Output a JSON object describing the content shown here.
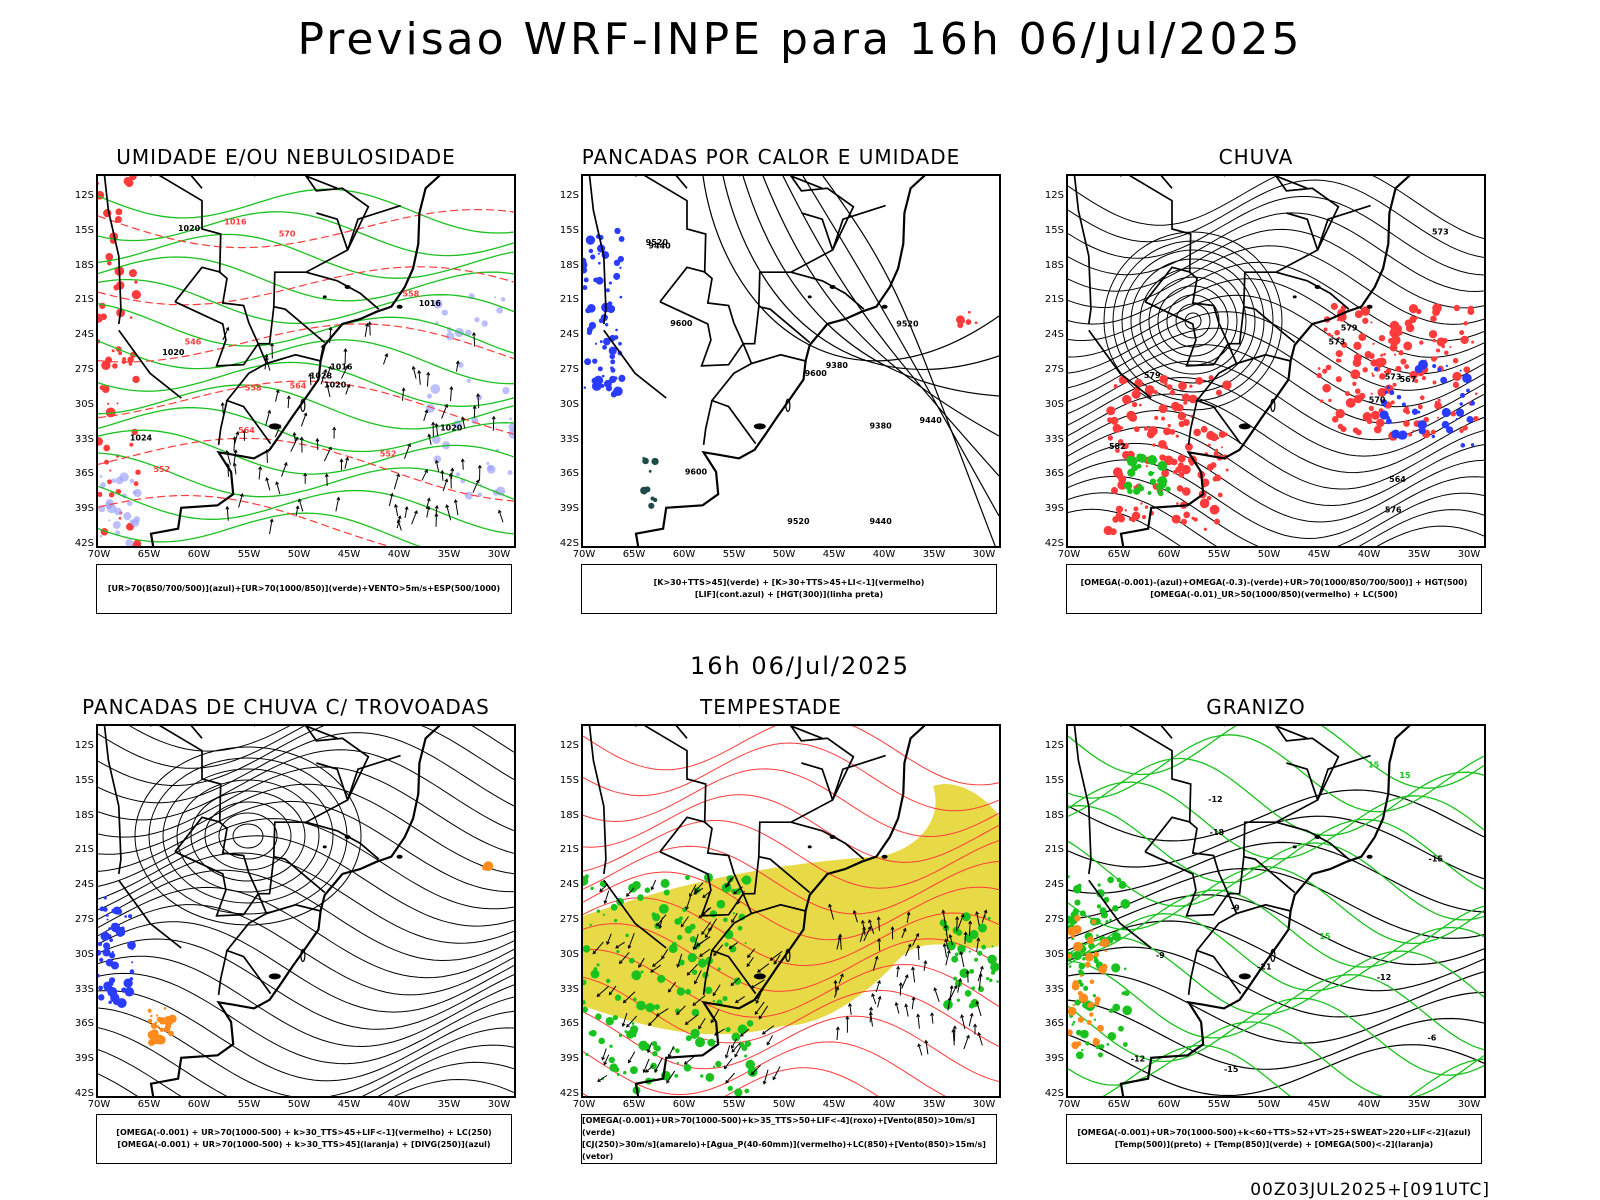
{
  "header": {
    "title": "Previsao WRF-INPE  para 16h 06/Jul/2025",
    "mid_date": "16h 06/Jul/2025",
    "run_info": "00Z03JUL2025+[091UTC]"
  },
  "axes": {
    "lat_labels": [
      "12S",
      "15S",
      "18S",
      "21S",
      "24S",
      "27S",
      "30S",
      "33S",
      "36S",
      "39S",
      "42S"
    ],
    "lon_labels": [
      "70W",
      "65W",
      "60W",
      "55W",
      "50W",
      "45W",
      "40W",
      "35W",
      "30W"
    ]
  },
  "colors": {
    "red": "#ff3b3b",
    "green": "#19c21e",
    "blue": "#2a3cff",
    "lavender": "#9ea2ff",
    "yellow": "#e5d632",
    "orange": "#ff8a1e",
    "teal": "#1f4a4a"
  },
  "panels": [
    {
      "id": "p1",
      "title": "UMIDADE E/OU NEBULOSIDADE",
      "legend": [
        "[UR>70(850/700/500)](azul)+[UR>70(1000/850)](verde)+VENTO>5m/s+ESP(500/1000)"
      ],
      "contour_labels": [
        "1016",
        "1016",
        "1020",
        "1020",
        "1024",
        "1028",
        "1020",
        "1020",
        "1016",
        "570",
        "564",
        "558",
        "552",
        "546",
        "552",
        "558",
        "564"
      ]
    },
    {
      "id": "p2",
      "title": "PANCADAS POR CALOR E UMIDADE",
      "legend": [
        "[K>30+TTS>45](verde) + [K>30+TTS>45+LI<-1](vermelho)",
        "[LIF](cont.azul) + [HGT(300)](linha preta)"
      ],
      "contour_labels": [
        "9600",
        "9600",
        "9600",
        "9520",
        "9520",
        "9440",
        "9520",
        "9440",
        "9380",
        "9440",
        "9380"
      ]
    },
    {
      "id": "p3",
      "title": "CHUVA",
      "legend": [
        "[OMEGA(-0.001)-(azul)+OMEGA(-0.3)-(verde)+UR>70(1000/850/700/500)] + HGT(500)",
        "[OMEGA(-0.01)_UR>50(1000/850)(vermelho) + LC(500)"
      ],
      "contour_labels": [
        "582",
        "579",
        "576",
        "573",
        "570",
        "567",
        "564",
        "573",
        "579",
        "573"
      ]
    },
    {
      "id": "p4",
      "title": "PANCADAS DE CHUVA C/ TROVOADAS",
      "legend": [
        "[OMEGA(-0.001) + UR>70(1000-500) + k>30_TTS>45+LIF<-1](vermelho) + LC(250)",
        "[OMEGA(-0.001) + UR>70(1000-500) + k>30_TTS>45](laranja) + [DIVG(250)](azul)"
      ],
      "contour_labels": []
    },
    {
      "id": "p5",
      "title": "TEMPESTADE",
      "legend": [
        "[OMEGA(-0.001)+UR>70(1000-500)+k>35_TTS>50+LIF<-4](roxo)+[Vento(850)>10m/s](verde)",
        "[CJ(250)>30m/s](amarelo)+[Agua_P(40-60mm)](vermelho)+LC(850)+[Vento(850)>15m/s](vetor)"
      ],
      "contour_labels": []
    },
    {
      "id": "p6",
      "title": "GRANIZO",
      "legend": [
        "[OMEGA(-0.001)+UR>70(1000-500)+k<60+TTS>52+VT>25+SWEAT>220+LIF<-2](azul)",
        "[Temp(500)](preto) + [Temp(850)](verde) + [OMEGA(500)<-2](laranja)"
      ],
      "contour_labels": [
        "-9",
        "-12",
        "-15",
        "-18",
        "-21",
        "-12",
        "-15",
        "-12",
        "-9",
        "-6",
        "15",
        "15",
        "15"
      ]
    }
  ]
}
